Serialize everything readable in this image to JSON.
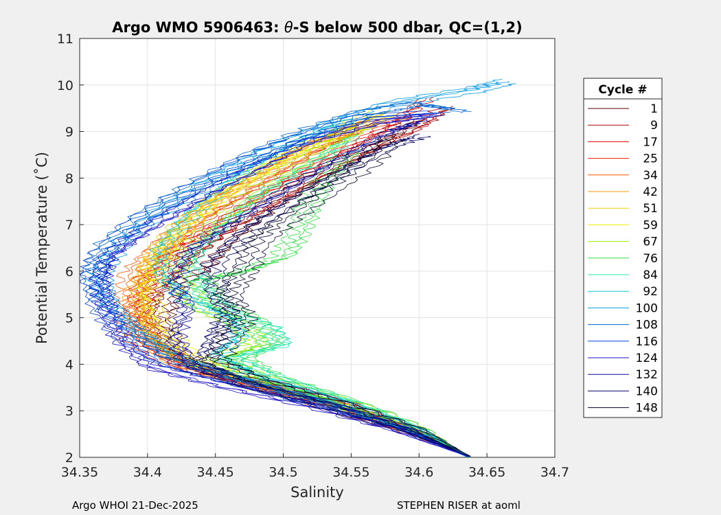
{
  "chart_data": {
    "type": "line",
    "title_prefix": "Argo WMO 5906463: ",
    "title_theta": "θ",
    "title_suffix": "-S below 500 dbar,  QC=(1,2)",
    "xlabel": "Salinity",
    "ylabel": "Potential Temperature (˚C)",
    "xlim": [
      34.35,
      34.7
    ],
    "ylim": [
      2,
      11
    ],
    "xticks": [
      "34.35",
      "34.4",
      "34.45",
      "34.5",
      "34.55",
      "34.6",
      "34.65",
      "34.7"
    ],
    "yticks": [
      "2",
      "3",
      "4",
      "5",
      "6",
      "7",
      "8",
      "9",
      "10",
      "11"
    ],
    "grid": true,
    "legend": {
      "title": "Cycle #",
      "position": "right",
      "entries": [
        "1",
        "9",
        "17",
        "25",
        "34",
        "42",
        "51",
        "59",
        "67",
        "76",
        "84",
        "92",
        "100",
        "108",
        "116",
        "124",
        "132",
        "140",
        "148"
      ]
    },
    "series": [
      {
        "name": "1",
        "color": "#5a0000",
        "points": [
          [
            34.638,
            2.02
          ],
          [
            34.6,
            2.55
          ],
          [
            34.55,
            3.05
          ],
          [
            34.5,
            3.45
          ],
          [
            34.45,
            3.8
          ],
          [
            34.42,
            4.3
          ],
          [
            34.41,
            5.0
          ],
          [
            34.42,
            5.6
          ],
          [
            34.44,
            6.1
          ],
          [
            34.46,
            6.7
          ],
          [
            34.49,
            7.4
          ],
          [
            34.53,
            8.1
          ],
          [
            34.57,
            8.8
          ],
          [
            34.6,
            9.3
          ]
        ]
      },
      {
        "name": "9",
        "color": "#aa0000",
        "points": [
          [
            34.637,
            2.02
          ],
          [
            34.6,
            2.55
          ],
          [
            34.55,
            3.1
          ],
          [
            34.5,
            3.5
          ],
          [
            34.44,
            3.85
          ],
          [
            34.41,
            4.4
          ],
          [
            34.4,
            5.1
          ],
          [
            34.41,
            5.7
          ],
          [
            34.43,
            6.3
          ],
          [
            34.46,
            6.9
          ],
          [
            34.5,
            7.6
          ],
          [
            34.55,
            8.4
          ],
          [
            34.6,
            9.1
          ],
          [
            34.62,
            9.5
          ]
        ]
      },
      {
        "name": "17",
        "color": "#e00000",
        "points": [
          [
            34.636,
            2.05
          ],
          [
            34.59,
            2.6
          ],
          [
            34.54,
            3.1
          ],
          [
            34.49,
            3.5
          ],
          [
            34.43,
            3.9
          ],
          [
            34.4,
            4.5
          ],
          [
            34.395,
            5.2
          ],
          [
            34.4,
            5.8
          ],
          [
            34.42,
            6.4
          ],
          [
            34.45,
            7.0
          ],
          [
            34.49,
            7.7
          ],
          [
            34.54,
            8.5
          ],
          [
            34.58,
            9.1
          ],
          [
            34.605,
            9.7
          ]
        ]
      },
      {
        "name": "25",
        "color": "#f02000",
        "points": [
          [
            34.635,
            2.05
          ],
          [
            34.59,
            2.6
          ],
          [
            34.54,
            3.15
          ],
          [
            34.48,
            3.55
          ],
          [
            34.43,
            3.95
          ],
          [
            34.4,
            4.5
          ],
          [
            34.39,
            5.2
          ],
          [
            34.4,
            5.9
          ],
          [
            34.42,
            6.5
          ],
          [
            34.45,
            7.2
          ],
          [
            34.49,
            7.9
          ],
          [
            34.53,
            8.6
          ],
          [
            34.57,
            9.2
          ]
        ]
      },
      {
        "name": "34",
        "color": "#ff5500",
        "points": [
          [
            34.635,
            2.05
          ],
          [
            34.59,
            2.6
          ],
          [
            34.53,
            3.15
          ],
          [
            34.48,
            3.6
          ],
          [
            34.42,
            4.0
          ],
          [
            34.39,
            4.6
          ],
          [
            34.385,
            5.3
          ],
          [
            34.39,
            6.0
          ],
          [
            34.41,
            6.6
          ],
          [
            34.44,
            7.3
          ],
          [
            34.48,
            8.0
          ],
          [
            34.52,
            8.7
          ],
          [
            34.56,
            9.2
          ]
        ]
      },
      {
        "name": "42",
        "color": "#ff9900",
        "points": [
          [
            34.636,
            2.03
          ],
          [
            34.59,
            2.6
          ],
          [
            34.53,
            3.2
          ],
          [
            34.47,
            3.6
          ],
          [
            34.42,
            4.05
          ],
          [
            34.395,
            4.7
          ],
          [
            34.39,
            5.4
          ],
          [
            34.4,
            6.1
          ],
          [
            34.42,
            6.8
          ],
          [
            34.45,
            7.5
          ],
          [
            34.49,
            8.2
          ],
          [
            34.53,
            8.8
          ],
          [
            34.57,
            9.3
          ]
        ]
      },
      {
        "name": "51",
        "color": "#e8d000",
        "points": [
          [
            34.637,
            2.02
          ],
          [
            34.59,
            2.6
          ],
          [
            34.53,
            3.2
          ],
          [
            34.47,
            3.65
          ],
          [
            34.42,
            4.1
          ],
          [
            34.4,
            4.8
          ],
          [
            34.395,
            5.5
          ],
          [
            34.4,
            6.2
          ],
          [
            34.42,
            6.9
          ],
          [
            34.45,
            7.6
          ],
          [
            34.49,
            8.3
          ],
          [
            34.54,
            8.9
          ],
          [
            34.58,
            9.4
          ]
        ]
      },
      {
        "name": "59",
        "color": "#f5f000",
        "points": [
          [
            34.637,
            2.02
          ],
          [
            34.59,
            2.65
          ],
          [
            34.53,
            3.2
          ],
          [
            34.47,
            3.7
          ],
          [
            34.43,
            4.2
          ],
          [
            34.41,
            4.9
          ],
          [
            34.4,
            5.6
          ],
          [
            34.41,
            6.3
          ],
          [
            34.43,
            7.0
          ],
          [
            34.46,
            7.7
          ],
          [
            34.5,
            8.4
          ],
          [
            34.54,
            9.0
          ],
          [
            34.57,
            9.4
          ]
        ]
      },
      {
        "name": "67",
        "color": "#99ee00",
        "points": [
          [
            34.638,
            2.0
          ],
          [
            34.6,
            2.6
          ],
          [
            34.54,
            3.2
          ],
          [
            34.48,
            3.7
          ],
          [
            34.45,
            4.1
          ],
          [
            34.48,
            4.4
          ],
          [
            34.47,
            4.8
          ],
          [
            34.44,
            5.2
          ],
          [
            34.42,
            5.8
          ],
          [
            34.43,
            6.5
          ],
          [
            34.46,
            7.2
          ],
          [
            34.49,
            7.9
          ],
          [
            34.53,
            8.6
          ],
          [
            34.56,
            9.1
          ]
        ]
      },
      {
        "name": "76",
        "color": "#33dd44",
        "points": [
          [
            34.638,
            2.0
          ],
          [
            34.6,
            2.6
          ],
          [
            34.54,
            3.25
          ],
          [
            34.49,
            3.7
          ],
          [
            34.47,
            4.1
          ],
          [
            34.49,
            4.45
          ],
          [
            34.48,
            4.9
          ],
          [
            34.45,
            5.3
          ],
          [
            34.44,
            5.8
          ],
          [
            34.47,
            6.0
          ],
          [
            34.5,
            6.3
          ],
          [
            34.51,
            6.8
          ],
          [
            34.52,
            7.4
          ],
          [
            34.53,
            8.0
          ],
          [
            34.55,
            8.6
          ]
        ]
      },
      {
        "name": "84",
        "color": "#22e8aa",
        "points": [
          [
            34.638,
            2.0
          ],
          [
            34.6,
            2.6
          ],
          [
            34.54,
            3.25
          ],
          [
            34.49,
            3.75
          ],
          [
            34.46,
            4.15
          ],
          [
            34.5,
            4.4
          ],
          [
            34.49,
            4.8
          ],
          [
            34.46,
            5.1
          ],
          [
            34.44,
            5.6
          ],
          [
            34.43,
            6.2
          ],
          [
            34.45,
            6.9
          ],
          [
            34.48,
            7.6
          ],
          [
            34.52,
            8.3
          ],
          [
            34.55,
            8.9
          ]
        ]
      },
      {
        "name": "92",
        "color": "#11c8d8",
        "points": [
          [
            34.637,
            2.0
          ],
          [
            34.6,
            2.6
          ],
          [
            34.54,
            3.25
          ],
          [
            34.48,
            3.75
          ],
          [
            34.45,
            4.2
          ],
          [
            34.47,
            4.6
          ],
          [
            34.46,
            5.0
          ],
          [
            34.43,
            5.4
          ],
          [
            34.41,
            5.9
          ],
          [
            34.41,
            6.5
          ],
          [
            34.43,
            7.2
          ],
          [
            34.46,
            7.9
          ],
          [
            34.5,
            8.6
          ],
          [
            34.55,
            9.3
          ]
        ]
      },
      {
        "name": "100",
        "color": "#0099e0",
        "points": [
          [
            34.636,
            2.0
          ],
          [
            34.59,
            2.6
          ],
          [
            34.53,
            3.2
          ],
          [
            34.47,
            3.7
          ],
          [
            34.42,
            4.2
          ],
          [
            34.39,
            4.8
          ],
          [
            34.37,
            5.4
          ],
          [
            34.365,
            6.0
          ],
          [
            34.38,
            6.6
          ],
          [
            34.41,
            7.3
          ],
          [
            34.45,
            8.0
          ],
          [
            34.49,
            8.6
          ],
          [
            34.53,
            9.1
          ],
          [
            34.58,
            9.6
          ],
          [
            34.64,
            9.9
          ],
          [
            34.665,
            10.08
          ]
        ]
      },
      {
        "name": "108",
        "color": "#0066d0",
        "points": [
          [
            34.636,
            2.02
          ],
          [
            34.59,
            2.6
          ],
          [
            34.53,
            3.2
          ],
          [
            34.47,
            3.65
          ],
          [
            34.42,
            4.1
          ],
          [
            34.39,
            4.7
          ],
          [
            34.37,
            5.3
          ],
          [
            34.36,
            5.9
          ],
          [
            34.37,
            6.5
          ],
          [
            34.4,
            7.2
          ],
          [
            34.44,
            7.9
          ],
          [
            34.48,
            8.5
          ],
          [
            34.52,
            9.0
          ],
          [
            34.56,
            9.4
          ],
          [
            34.6,
            9.6
          ],
          [
            34.63,
            9.45
          ]
        ]
      },
      {
        "name": "116",
        "color": "#0040d8",
        "points": [
          [
            34.636,
            2.02
          ],
          [
            34.59,
            2.6
          ],
          [
            34.52,
            3.15
          ],
          [
            34.46,
            3.6
          ],
          [
            34.41,
            4.0
          ],
          [
            34.38,
            4.6
          ],
          [
            34.365,
            5.2
          ],
          [
            34.36,
            5.8
          ],
          [
            34.365,
            6.3
          ],
          [
            34.39,
            7.0
          ],
          [
            34.43,
            7.7
          ],
          [
            34.47,
            8.3
          ],
          [
            34.51,
            8.8
          ],
          [
            34.56,
            9.3
          ],
          [
            34.615,
            9.4
          ]
        ]
      },
      {
        "name": "124",
        "color": "#1a10c8",
        "points": [
          [
            34.636,
            2.02
          ],
          [
            34.58,
            2.6
          ],
          [
            34.52,
            3.1
          ],
          [
            34.45,
            3.55
          ],
          [
            34.4,
            3.95
          ],
          [
            34.38,
            4.5
          ],
          [
            34.37,
            5.1
          ],
          [
            34.365,
            5.7
          ],
          [
            34.37,
            6.3
          ],
          [
            34.4,
            6.9
          ],
          [
            34.44,
            7.6
          ],
          [
            34.48,
            8.2
          ],
          [
            34.52,
            8.8
          ],
          [
            34.57,
            9.2
          ],
          [
            34.61,
            9.35
          ]
        ]
      },
      {
        "name": "132",
        "color": "#0a0a9a",
        "points": [
          [
            34.637,
            2.02
          ],
          [
            34.59,
            2.6
          ],
          [
            34.53,
            3.15
          ],
          [
            34.47,
            3.6
          ],
          [
            34.43,
            4.0
          ],
          [
            34.42,
            4.6
          ],
          [
            34.43,
            5.2
          ],
          [
            34.42,
            5.8
          ],
          [
            34.43,
            6.4
          ],
          [
            34.46,
            7.0
          ],
          [
            34.5,
            7.7
          ],
          [
            34.54,
            8.4
          ],
          [
            34.58,
            9.0
          ],
          [
            34.6,
            9.2
          ]
        ]
      },
      {
        "name": "140",
        "color": "#050560",
        "points": [
          [
            34.637,
            2.02
          ],
          [
            34.59,
            2.6
          ],
          [
            34.53,
            3.15
          ],
          [
            34.47,
            3.6
          ],
          [
            34.44,
            4.0
          ],
          [
            34.45,
            4.6
          ],
          [
            34.46,
            5.1
          ],
          [
            34.45,
            5.6
          ],
          [
            34.45,
            6.2
          ],
          [
            34.47,
            6.8
          ],
          [
            34.5,
            7.4
          ],
          [
            34.54,
            8.1
          ],
          [
            34.58,
            8.7
          ],
          [
            34.6,
            8.9
          ]
        ]
      },
      {
        "name": "148",
        "color": "#000028",
        "points": [
          [
            34.638,
            2.02
          ],
          [
            34.6,
            2.6
          ],
          [
            34.54,
            3.2
          ],
          [
            34.48,
            3.7
          ],
          [
            34.45,
            4.1
          ],
          [
            34.46,
            4.6
          ],
          [
            34.47,
            5.0
          ],
          [
            34.46,
            5.5
          ],
          [
            34.47,
            6.0
          ],
          [
            34.48,
            6.6
          ],
          [
            34.5,
            7.1
          ],
          [
            34.53,
            7.7
          ],
          [
            34.56,
            8.3
          ],
          [
            34.58,
            8.9
          ]
        ]
      }
    ]
  },
  "footer": {
    "left": "Argo WHOI 21-Dec-2025",
    "right": "STEPHEN RISER at aoml"
  }
}
